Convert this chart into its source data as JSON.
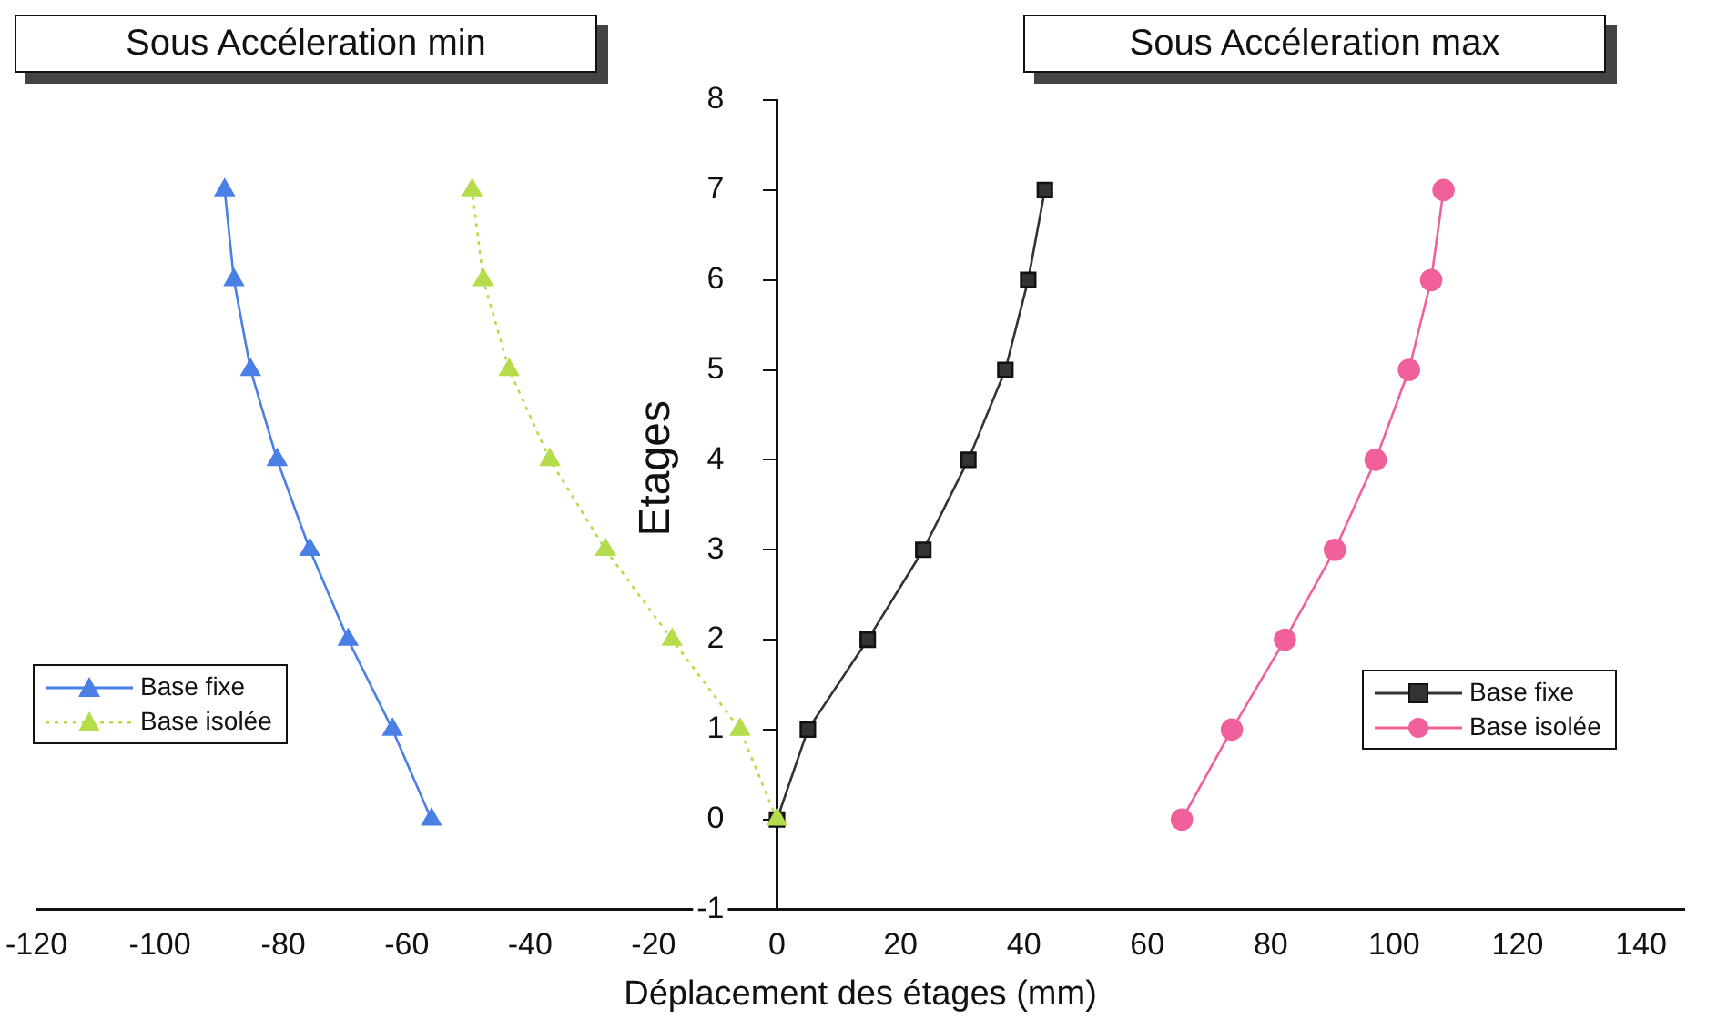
{
  "chart_data": {
    "type": "line",
    "xlabel": "Déplacement des étages (mm)",
    "ylabel": "Etages",
    "annotations": [
      "Sous Accéleration min",
      "Sous Accéleration max"
    ],
    "xlim": [
      -120,
      147
    ],
    "xticks": [
      -120,
      -100,
      -80,
      -60,
      -40,
      -20,
      0,
      20,
      40,
      60,
      80,
      100,
      120,
      140
    ],
    "ylim": [
      -1,
      8
    ],
    "yticks": [
      -1,
      0,
      1,
      2,
      3,
      4,
      5,
      6,
      7,
      8
    ],
    "grid": false,
    "legend": "left",
    "line_style": "solid",
    "series": [
      {
        "name": "Base fixe",
        "color": "#4a7fe6",
        "marker": "triangle",
        "x": [
          -56,
          -62.3,
          -69.5,
          -75.7,
          -81,
          -85.3,
          -88,
          -89.5
        ],
        "values": [
          0,
          1,
          2,
          3,
          4,
          5,
          6,
          7
        ]
      },
      {
        "name": "Base isolée",
        "color": "#b5dc4a",
        "marker": "triangle",
        "line_style": "dotted",
        "x": [
          0,
          -6,
          -17,
          -27.8,
          -36.8,
          -43.4,
          -47.6,
          -49.4
        ],
        "values": [
          0,
          1,
          2,
          3,
          4,
          5,
          6,
          7
        ]
      },
      {
        "name": "Base fixe",
        "color": "#333333",
        "marker": "square",
        "x": [
          0,
          5,
          14.7,
          23.7,
          31,
          37,
          40.7,
          43.4
        ],
        "values": [
          0,
          1,
          2,
          3,
          4,
          5,
          6,
          7
        ]
      },
      {
        "name": "Base isolée",
        "color": "#f0609a",
        "marker": "circle",
        "x": [
          65.6,
          73.7,
          82.3,
          90.4,
          97,
          102.4,
          106,
          108
        ],
        "values": [
          0,
          1,
          2,
          3,
          4,
          5,
          6,
          7
        ]
      }
    ]
  }
}
